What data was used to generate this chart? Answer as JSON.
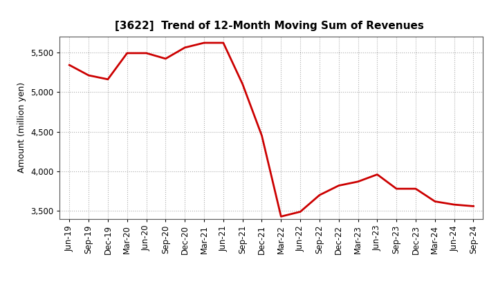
{
  "title": "[3622]  Trend of 12-Month Moving Sum of Revenues",
  "ylabel": "Amount (million yen)",
  "line_color": "#cc0000",
  "line_width": 2.0,
  "background_color": "#ffffff",
  "plot_bg_color": "#ffffff",
  "ylim": [
    3400,
    5700
  ],
  "yticks": [
    3500,
    4000,
    4500,
    5000,
    5500
  ],
  "labels": [
    "Jun-19",
    "Sep-19",
    "Dec-19",
    "Mar-20",
    "Jun-20",
    "Sep-20",
    "Dec-20",
    "Mar-21",
    "Jun-21",
    "Sep-21",
    "Dec-21",
    "Mar-22",
    "Jun-22",
    "Sep-22",
    "Dec-22",
    "Mar-23",
    "Jun-23",
    "Sep-23",
    "Dec-23",
    "Mar-24",
    "Jun-24",
    "Sep-24"
  ],
  "values": [
    5340,
    5210,
    5160,
    5490,
    5490,
    5420,
    5560,
    5620,
    5620,
    5100,
    4450,
    3430,
    3490,
    3700,
    3820,
    3870,
    3960,
    3780,
    3780,
    3620,
    3580,
    3560
  ],
  "title_fontsize": 11,
  "ylabel_fontsize": 9,
  "tick_fontsize": 8.5
}
